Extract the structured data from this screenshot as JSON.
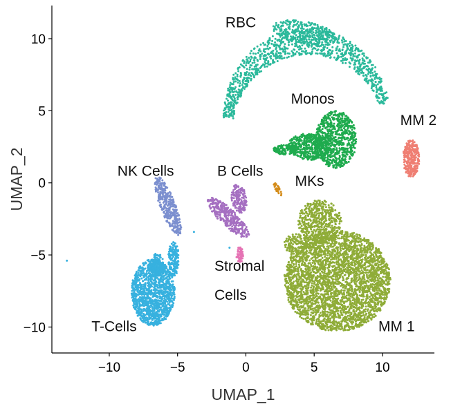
{
  "chart_data": {
    "type": "scatter",
    "title": "",
    "xlabel": "UMAP_1",
    "ylabel": "UMAP_2",
    "xlim": [
      -14.2,
      13.8
    ],
    "ylim": [
      -11.8,
      12.3
    ],
    "xticks": [
      -10,
      -5,
      0,
      5,
      10
    ],
    "xtick_labels": [
      "−10",
      "−5",
      "0",
      "5",
      "10"
    ],
    "yticks": [
      -10,
      -5,
      0,
      5,
      10
    ],
    "ytick_labels": [
      "−10",
      "−5",
      "0",
      "5",
      "10"
    ],
    "grid": false,
    "legend": "none",
    "clusters": [
      {
        "name": "RBC",
        "label": "RBC",
        "color": "#2bb99b",
        "label_pos": [
          -1.5,
          10.8
        ],
        "regions": [
          {
            "shape": "arc",
            "center": [
              4.5,
              4.0
            ],
            "radius": 5.8,
            "thickness": 0.9,
            "angle_from": 15,
            "angle_to": 175,
            "n": 1000
          },
          {
            "shape": "ellipse",
            "center": [
              4.3,
              10.4
            ],
            "rx": 2.4,
            "ry": 0.8,
            "rot": -10,
            "n": 300
          }
        ]
      },
      {
        "name": "Monos",
        "label": "Monos",
        "color": "#1fab4e",
        "label_pos": [
          3.3,
          5.5
        ],
        "regions": [
          {
            "shape": "ellipse",
            "center": [
              6.6,
              3.0
            ],
            "rx": 1.5,
            "ry": 2.0,
            "rot": 0,
            "n": 750
          },
          {
            "shape": "ellipse",
            "center": [
              4.6,
              2.5
            ],
            "rx": 1.5,
            "ry": 0.9,
            "rot": -5,
            "n": 450
          },
          {
            "shape": "ellipse",
            "center": [
              2.9,
              2.3
            ],
            "rx": 0.9,
            "ry": 0.35,
            "rot": 0,
            "n": 120
          }
        ]
      },
      {
        "name": "MM 2",
        "label": "MM 2",
        "color": "#ef7f73",
        "label_pos": [
          11.3,
          4.0
        ],
        "regions": [
          {
            "shape": "ellipse",
            "center": [
              12.1,
              1.7
            ],
            "rx": 0.6,
            "ry": 1.3,
            "rot": 0,
            "n": 300
          }
        ]
      },
      {
        "name": "NK Cells",
        "label": "NK Cells",
        "color": "#7b8fcf",
        "label_pos": [
          -9.4,
          0.5
        ],
        "regions": [
          {
            "shape": "ellipse",
            "center": [
              -5.7,
              -1.6
            ],
            "rx": 0.55,
            "ry": 2.2,
            "rot": 22,
            "n": 360
          }
        ]
      },
      {
        "name": "B Cells",
        "label": "B Cells",
        "color": "#a56fc1",
        "label_pos": [
          -2.1,
          0.5
        ],
        "regions": [
          {
            "shape": "ellipse",
            "center": [
              -1.3,
              -2.4
            ],
            "rx": 0.6,
            "ry": 2.0,
            "rot": 48,
            "n": 320
          },
          {
            "shape": "ellipse",
            "center": [
              -0.5,
              -1.1
            ],
            "rx": 0.55,
            "ry": 1.0,
            "rot": 10,
            "n": 160
          }
        ]
      },
      {
        "name": "MKs",
        "label": "MKs",
        "color": "#d48c1a",
        "label_pos": [
          3.6,
          -0.2
        ],
        "regions": [
          {
            "shape": "ellipse",
            "center": [
              2.3,
              -0.4
            ],
            "rx": 0.15,
            "ry": 0.55,
            "rot": 30,
            "n": 30
          }
        ]
      },
      {
        "name": "Stromal Cells",
        "label": "Stromal",
        "label2": "Cells",
        "color": "#e573b4",
        "label_pos": [
          -2.3,
          -6.1
        ],
        "label2_pos": [
          -2.3,
          -8.1
        ],
        "regions": [
          {
            "shape": "ellipse",
            "center": [
              -0.45,
              -5.0
            ],
            "rx": 0.25,
            "ry": 0.6,
            "rot": 0,
            "n": 60
          }
        ]
      },
      {
        "name": "T-Cells",
        "label": "T-Cells",
        "color": "#37b1df",
        "label_pos": [
          -11.3,
          -10.3
        ],
        "regions": [
          {
            "shape": "ellipse",
            "center": [
              -6.8,
              -7.6
            ],
            "rx": 1.6,
            "ry": 2.3,
            "rot": 0,
            "n": 1300
          },
          {
            "shape": "ellipse",
            "center": [
              -5.3,
              -5.3
            ],
            "rx": 0.4,
            "ry": 1.2,
            "rot": 0,
            "n": 160
          },
          {
            "shape": "ellipse",
            "center": [
              -6.5,
              -5.7
            ],
            "rx": 0.5,
            "ry": 0.8,
            "rot": 0,
            "n": 140
          }
        ]
      },
      {
        "name": "MM 1",
        "label": "MM 1",
        "color": "#8fac38",
        "label_pos": [
          9.7,
          -10.3
        ],
        "regions": [
          {
            "shape": "ellipse",
            "center": [
              6.7,
              -6.8
            ],
            "rx": 3.9,
            "ry": 3.5,
            "rot": 0,
            "n": 3300
          },
          {
            "shape": "ellipse",
            "center": [
              5.4,
              -2.7
            ],
            "rx": 1.6,
            "ry": 1.5,
            "rot": 0,
            "n": 500
          },
          {
            "shape": "ellipse",
            "center": [
              3.8,
              -4.3
            ],
            "rx": 1.0,
            "ry": 0.8,
            "rot": 0,
            "n": 150
          }
        ]
      }
    ],
    "outliers": [
      {
        "x": -13.1,
        "y": -5.4,
        "color": "#37b1df"
      },
      {
        "x": -3.8,
        "y": -3.4,
        "color": "#37b1df"
      },
      {
        "x": -1.2,
        "y": -4.5,
        "color": "#37b1df"
      }
    ]
  }
}
